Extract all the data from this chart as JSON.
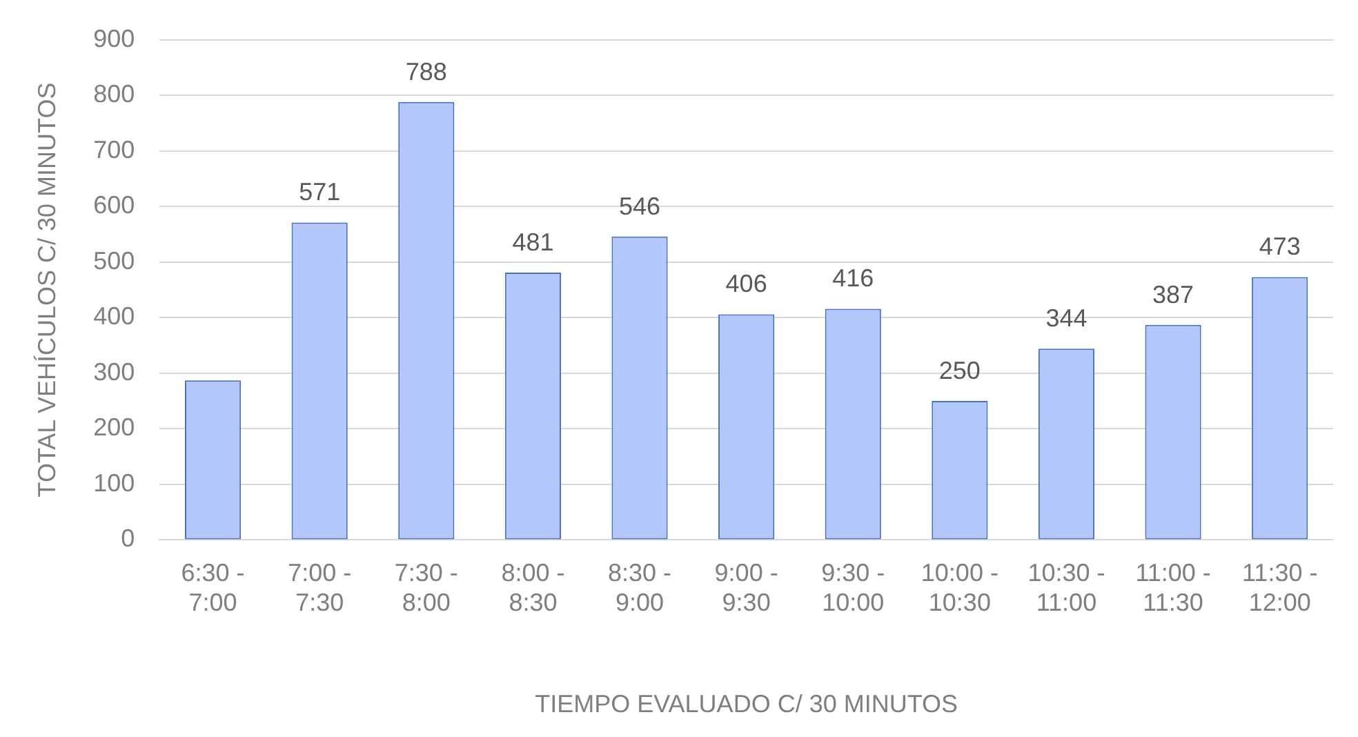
{
  "chart_data": {
    "type": "bar",
    "xlabel": "TIEMPO EVALUADO C/ 30 MINUTOS",
    "ylabel": "TOTAL VEHÍCULOS C/ 30 MINUTOS",
    "categories": [
      "6:30 - 7:00",
      "7:00 - 7:30",
      "7:30 - 8:00",
      "8:00 - 8:30",
      "8:30 - 9:00",
      "9:00 - 9:30",
      "9:30 - 10:00",
      "10:00 - 10:30",
      "10:30 - 11:00",
      "11:00 - 11:30",
      "11:30 - 12:00"
    ],
    "values": [
      287,
      571,
      788,
      481,
      546,
      406,
      416,
      250,
      344,
      387,
      473
    ],
    "value_labels": [
      null,
      "571",
      "788",
      "481",
      "546",
      "406",
      "416",
      "250",
      "344",
      "387",
      "473"
    ],
    "color": "#b4c7fb",
    "ylim": [
      0,
      900
    ],
    "yticks": [
      0,
      100,
      200,
      300,
      400,
      500,
      600,
      700,
      800,
      900
    ],
    "grid": "y",
    "legend": false
  }
}
